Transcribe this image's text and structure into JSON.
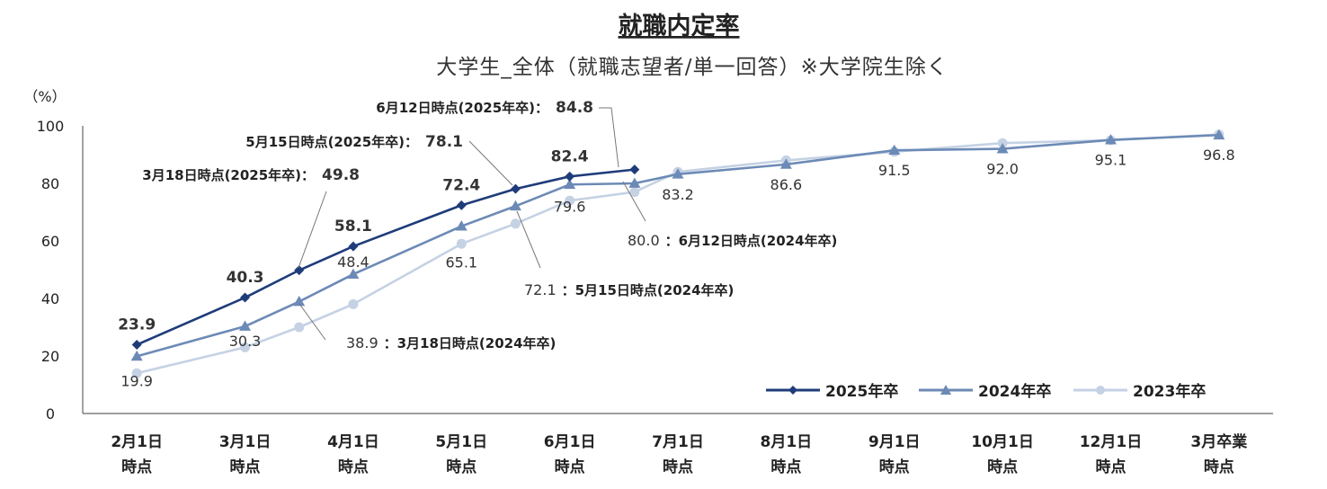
{
  "chart_data": {
    "type": "line",
    "title": "就職内定率",
    "subtitle": "大学生_全体（就職志望者/単一回答）※大学院生除く",
    "ylabel": "（%）",
    "ylim": [
      0,
      100
    ],
    "yticks": [
      0,
      20,
      40,
      60,
      80,
      100
    ],
    "categories": [
      [
        "2月1日",
        "時点"
      ],
      [
        "3月1日",
        "時点"
      ],
      [
        "4月1日",
        "時点"
      ],
      [
        "5月1日",
        "時点"
      ],
      [
        "6月1日",
        "時点"
      ],
      [
        "7月1日",
        "時点"
      ],
      [
        "8月1日",
        "時点"
      ],
      [
        "9月1日",
        "時点"
      ],
      [
        "10月1日",
        "時点"
      ],
      [
        "12月1日",
        "時点"
      ],
      [
        "3月卒業",
        "時点"
      ]
    ],
    "legend_position": "bottom-right",
    "series": [
      {
        "name": "2025年卒",
        "color": "#1f3c7a",
        "marker": "diamond",
        "points": [
          {
            "x": 0,
            "y": 23.9,
            "label": "23.9"
          },
          {
            "x": 1,
            "y": 40.3,
            "label": "40.3"
          },
          {
            "x": 1.5,
            "y": 49.8
          },
          {
            "x": 2,
            "y": 58.1,
            "label": "58.1"
          },
          {
            "x": 3,
            "y": 72.4,
            "label": "72.4"
          },
          {
            "x": 3.5,
            "y": 78.1
          },
          {
            "x": 4,
            "y": 82.4,
            "label": "82.4"
          },
          {
            "x": 4.6,
            "y": 84.8
          }
        ]
      },
      {
        "name": "2024年卒",
        "color": "#6c8ab6",
        "marker": "triangle",
        "points": [
          {
            "x": 0,
            "y": 19.9,
            "label": "19.9"
          },
          {
            "x": 1,
            "y": 30.3,
            "label": "30.3"
          },
          {
            "x": 1.5,
            "y": 38.9
          },
          {
            "x": 2,
            "y": 48.4,
            "label": "48.4"
          },
          {
            "x": 3,
            "y": 65.1,
            "label": "65.1"
          },
          {
            "x": 3.5,
            "y": 72.1
          },
          {
            "x": 4,
            "y": 79.6,
            "label": "79.6"
          },
          {
            "x": 4.6,
            "y": 80.0
          },
          {
            "x": 5,
            "y": 83.2,
            "label": "83.2"
          },
          {
            "x": 6,
            "y": 86.6,
            "label": "86.6"
          },
          {
            "x": 7,
            "y": 91.5,
            "label": "91.5"
          },
          {
            "x": 8,
            "y": 92.0,
            "label": "92.0"
          },
          {
            "x": 9,
            "y": 95.1,
            "label": "95.1"
          },
          {
            "x": 10,
            "y": 96.8,
            "label": "96.8"
          }
        ]
      },
      {
        "name": "2023年卒",
        "color": "#c5d2e4",
        "marker": "circle",
        "points": [
          {
            "x": 0,
            "y": 14.0
          },
          {
            "x": 1,
            "y": 23.0
          },
          {
            "x": 1.5,
            "y": 30.0
          },
          {
            "x": 2,
            "y": 38.0
          },
          {
            "x": 3,
            "y": 59.0
          },
          {
            "x": 3.5,
            "y": 66.0
          },
          {
            "x": 4,
            "y": 74.0
          },
          {
            "x": 4.6,
            "y": 77.0
          },
          {
            "x": 5,
            "y": 84.0
          },
          {
            "x": 6,
            "y": 88.0
          },
          {
            "x": 7,
            "y": 91.0
          },
          {
            "x": 8,
            "y": 94.0
          },
          {
            "x": 9,
            "y": 95.0
          },
          {
            "x": 10,
            "y": 97.0
          }
        ]
      }
    ],
    "annotations": [
      {
        "text": "6月12日時点(2025年卒)：",
        "value": "84.8",
        "series": 0,
        "point": 7
      },
      {
        "text": "5月15日時点(2025年卒)：",
        "value": "78.1",
        "series": 0,
        "point": 5
      },
      {
        "text": "3月18日時点(2025年卒)：",
        "value": "49.8",
        "series": 0,
        "point": 2
      },
      {
        "text": "：6月12日時点(2024年卒)",
        "value": "80.0",
        "series": 1,
        "point": 7
      },
      {
        "text": "：5月15日時点(2024年卒)",
        "value": "72.1",
        "series": 1,
        "point": 5
      },
      {
        "text": "：3月18日時点(2024年卒)",
        "value": "38.9",
        "series": 1,
        "point": 2
      }
    ]
  }
}
